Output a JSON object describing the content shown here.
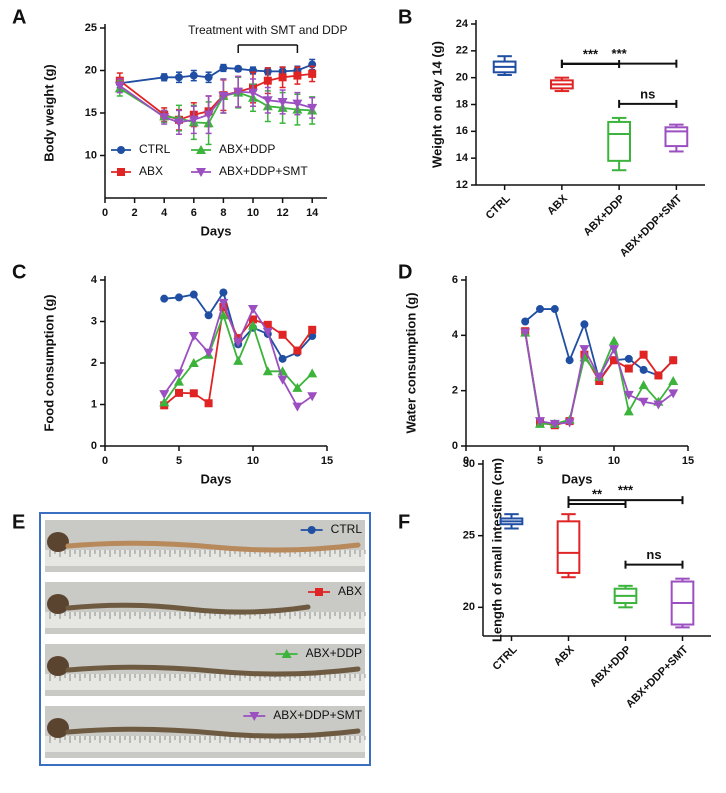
{
  "chart_data": [
    {
      "panel": "A",
      "type": "line",
      "xlabel": "Days",
      "ylabel": "Body weight (g)",
      "xlim": [
        0,
        15
      ],
      "xticks": [
        0,
        2,
        4,
        6,
        8,
        10,
        12,
        14
      ],
      "ylim": [
        5,
        25
      ],
      "yticks": [
        10,
        15,
        20,
        25
      ],
      "x": [
        1,
        4,
        5,
        6,
        7,
        8,
        9,
        10,
        11,
        12,
        13,
        14
      ],
      "annotation": {
        "text": "Treatment with SMT and DDP",
        "span": [
          9,
          13
        ]
      },
      "legend": "lower center",
      "series": [
        {
          "name": "CTRL",
          "color": "#1f4ea3",
          "marker": "circle",
          "values": [
            18.5,
            19.2,
            19.2,
            19.4,
            19.2,
            20.3,
            20.2,
            20.0,
            19.9,
            19.9,
            20.0,
            20.7
          ],
          "errors": [
            0.5,
            0.4,
            0.6,
            0.6,
            0.6,
            0.4,
            0.3,
            0.4,
            0.4,
            0.5,
            0.5,
            0.6
          ]
        },
        {
          "name": "ABX",
          "color": "#e02424",
          "marker": "square",
          "values": [
            18.8,
            14.8,
            14.2,
            14.8,
            15.2,
            17.1,
            17.5,
            18.0,
            18.8,
            19.2,
            19.4,
            19.6
          ],
          "errors": [
            0.9,
            0.8,
            1.2,
            1.4,
            1.8,
            1.8,
            1.8,
            1.8,
            1.5,
            1.2,
            1.0,
            0.9
          ]
        },
        {
          "name": "ABX+DDP",
          "color": "#3cb43c",
          "marker": "triangle-up",
          "values": [
            17.9,
            14.6,
            14.4,
            13.9,
            13.8,
            17.0,
            17.4,
            16.8,
            15.8,
            15.6,
            15.4,
            15.3
          ],
          "errors": [
            0.9,
            0.7,
            1.5,
            2.0,
            2.5,
            2.0,
            1.8,
            1.6,
            1.8,
            1.8,
            1.8,
            1.6
          ]
        },
        {
          "name": "ABX+DDP+SMT",
          "color": "#9b4fc0",
          "marker": "triangle-down",
          "values": [
            18.2,
            14.5,
            13.9,
            14.2,
            14.8,
            17.0,
            17.5,
            17.4,
            16.5,
            16.3,
            16.1,
            15.6
          ],
          "errors": [
            0.8,
            0.8,
            1.4,
            1.6,
            2.2,
            2.0,
            1.8,
            1.6,
            1.5,
            1.4,
            1.3,
            1.2
          ]
        }
      ]
    },
    {
      "panel": "B",
      "type": "box",
      "ylabel": "Weight on day 14 (g)",
      "ylim": [
        12,
        24
      ],
      "yticks": [
        12,
        14,
        16,
        18,
        20,
        22,
        24
      ],
      "categories": [
        "CTRL",
        "ABX",
        "ABX+DDP",
        "ABX+DDP+SMT"
      ],
      "colors": [
        "#1f4ea3",
        "#e02424",
        "#3cb43c",
        "#9b4fc0"
      ],
      "boxes": [
        {
          "min": 20.2,
          "q1": 20.4,
          "median": 20.8,
          "q3": 21.2,
          "max": 21.6
        },
        {
          "min": 19.0,
          "q1": 19.2,
          "median": 19.5,
          "q3": 19.8,
          "max": 20.0
        },
        {
          "min": 13.1,
          "q1": 13.8,
          "median": 15.8,
          "q3": 16.7,
          "max": 17.0
        },
        {
          "min": 14.5,
          "q1": 14.9,
          "median": 16.0,
          "q3": 16.3,
          "max": 16.5
        }
      ],
      "comparisons": [
        {
          "groups": [
            "ABX",
            "ABX+DDP+SMT"
          ],
          "label": "***"
        },
        {
          "groups": [
            "ABX",
            "ABX+DDP"
          ],
          "label": "***"
        },
        {
          "groups": [
            "ABX+DDP",
            "ABX+DDP+SMT"
          ],
          "label": "ns"
        }
      ]
    },
    {
      "panel": "C",
      "type": "line",
      "xlabel": "Days",
      "ylabel": "Food consumption (g)",
      "xlim": [
        0,
        15
      ],
      "xticks": [
        0,
        5,
        10,
        15
      ],
      "ylim": [
        0,
        4
      ],
      "yticks": [
        0,
        1,
        2,
        3,
        4
      ],
      "x": [
        4,
        5,
        6,
        7,
        8,
        9,
        10,
        11,
        12,
        13,
        14
      ],
      "series": [
        {
          "name": "CTRL",
          "color": "#1f4ea3",
          "marker": "circle",
          "values": [
            3.55,
            3.58,
            3.65,
            3.15,
            3.7,
            2.45,
            2.85,
            2.7,
            2.1,
            2.25,
            2.65
          ]
        },
        {
          "name": "ABX",
          "color": "#e02424",
          "marker": "square",
          "values": [
            0.98,
            1.28,
            1.27,
            1.03,
            3.35,
            2.6,
            3.05,
            2.92,
            2.68,
            2.3,
            2.8
          ]
        },
        {
          "name": "ABX+DDP",
          "color": "#3cb43c",
          "marker": "triangle-up",
          "values": [
            1.05,
            1.55,
            2.0,
            2.2,
            3.15,
            2.05,
            2.9,
            1.8,
            1.8,
            1.4,
            1.75
          ]
        },
        {
          "name": "ABX+DDP+SMT",
          "color": "#9b4fc0",
          "marker": "triangle-down",
          "values": [
            1.25,
            1.75,
            2.65,
            2.25,
            3.45,
            2.5,
            3.3,
            2.75,
            1.6,
            0.95,
            1.2
          ]
        }
      ]
    },
    {
      "panel": "D",
      "type": "line",
      "xlabel": "Days",
      "ylabel": "Water consumption (g)",
      "xlim": [
        0,
        15
      ],
      "xticks": [
        0,
        5,
        10,
        15
      ],
      "ylim": [
        0,
        6
      ],
      "yticks": [
        0,
        2,
        4,
        6
      ],
      "x": [
        4,
        5,
        6,
        7,
        8,
        9,
        10,
        11,
        12,
        13,
        14
      ],
      "series": [
        {
          "name": "CTRL",
          "color": "#1f4ea3",
          "marker": "circle",
          "values": [
            4.5,
            4.95,
            4.95,
            3.1,
            4.4,
            2.4,
            3.1,
            3.15,
            2.75,
            2.55,
            3.1
          ]
        },
        {
          "name": "ABX",
          "color": "#e02424",
          "marker": "square",
          "values": [
            4.15,
            0.85,
            0.75,
            0.9,
            3.3,
            2.35,
            3.1,
            2.8,
            3.3,
            2.55,
            3.1
          ]
        },
        {
          "name": "ABX+DDP",
          "color": "#3cb43c",
          "marker": "triangle-up",
          "values": [
            4.1,
            0.8,
            0.8,
            0.95,
            3.2,
            2.5,
            3.8,
            1.25,
            2.2,
            1.6,
            2.35
          ]
        },
        {
          "name": "ABX+DDP+SMT",
          "color": "#9b4fc0",
          "marker": "triangle-down",
          "values": [
            4.1,
            0.9,
            0.8,
            0.85,
            3.5,
            2.5,
            3.5,
            1.85,
            1.6,
            1.5,
            1.9
          ]
        }
      ]
    },
    {
      "panel": "F",
      "type": "box",
      "ylabel": "Length of small intestine (cm)",
      "ylim": [
        18,
        30
      ],
      "yticks": [
        20,
        25,
        30
      ],
      "categories": [
        "CTRL",
        "ABX",
        "ABX+DDP",
        "ABX+DDP+SMT"
      ],
      "colors": [
        "#1f4ea3",
        "#e02424",
        "#3cb43c",
        "#9b4fc0"
      ],
      "boxes": [
        {
          "min": 25.5,
          "q1": 25.8,
          "median": 26.0,
          "q3": 26.2,
          "max": 26.5
        },
        {
          "min": 22.1,
          "q1": 22.4,
          "median": 23.8,
          "q3": 26.0,
          "max": 26.5
        },
        {
          "min": 20.0,
          "q1": 20.3,
          "median": 20.8,
          "q3": 21.3,
          "max": 21.5
        },
        {
          "min": 18.6,
          "q1": 18.8,
          "median": 20.3,
          "q3": 21.8,
          "max": 22.0
        }
      ],
      "comparisons": [
        {
          "groups": [
            "ABX",
            "ABX+DDP+SMT"
          ],
          "label": "***"
        },
        {
          "groups": [
            "ABX",
            "ABX+DDP"
          ],
          "label": "**"
        },
        {
          "groups": [
            "ABX+DDP",
            "ABX+DDP+SMT"
          ],
          "label": "ns"
        }
      ]
    }
  ],
  "photo": {
    "panel": "E",
    "items": [
      {
        "name": "CTRL",
        "color": "#1f4ea3",
        "marker": "circle"
      },
      {
        "name": "ABX",
        "color": "#e02424",
        "marker": "square"
      },
      {
        "name": "ABX+DDP",
        "color": "#3cb43c",
        "marker": "triangle-up"
      },
      {
        "name": "ABX+DDP+SMT",
        "color": "#9b4fc0",
        "marker": "triangle-down"
      }
    ]
  }
}
